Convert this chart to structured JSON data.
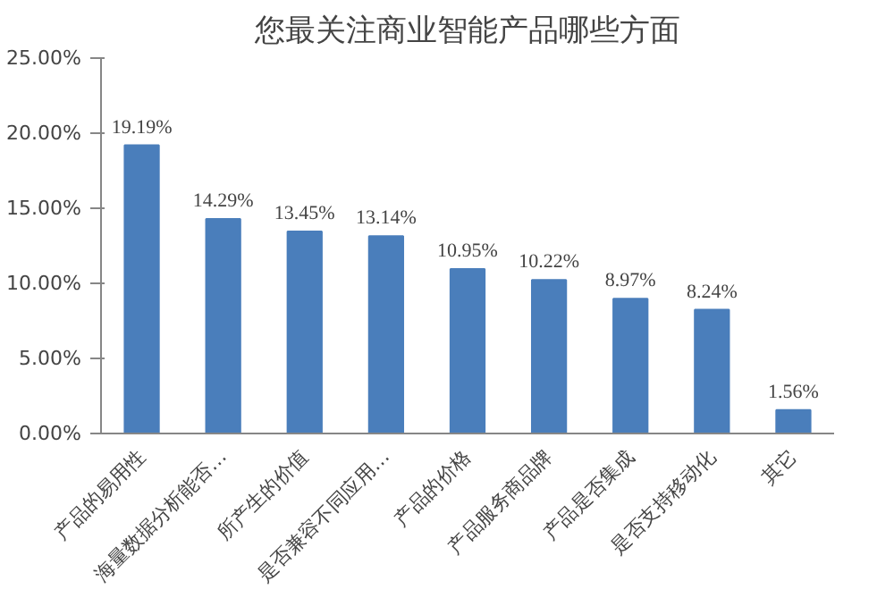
{
  "chart_data": {
    "type": "bar",
    "title": "您最关注商业智能产品哪些方面",
    "categories": [
      "产品的易用性",
      "海量数据分析能否…",
      "所产生的价值",
      "是否兼容不同应用…",
      "产品的价格",
      "产品服务商品牌",
      "产品是否集成",
      "是否支持移动化",
      "其它"
    ],
    "values": [
      19.19,
      14.29,
      13.45,
      13.14,
      10.95,
      10.22,
      8.97,
      8.24,
      1.56
    ],
    "value_labels": [
      "19.19%",
      "14.29%",
      "13.45%",
      "13.14%",
      "10.95%",
      "10.22%",
      "8.97%",
      "8.24%",
      "1.56%"
    ],
    "color": "#4a7ebb",
    "ylim": [
      0,
      25
    ],
    "yticks": [
      {
        "value": 0,
        "label": "0.00%"
      },
      {
        "value": 5,
        "label": "5.00%"
      },
      {
        "value": 10,
        "label": "10.00%"
      },
      {
        "value": 15,
        "label": "15.00%"
      },
      {
        "value": 20,
        "label": "20.00%"
      },
      {
        "value": 25,
        "label": "25.00%"
      }
    ],
    "grid": false
  }
}
